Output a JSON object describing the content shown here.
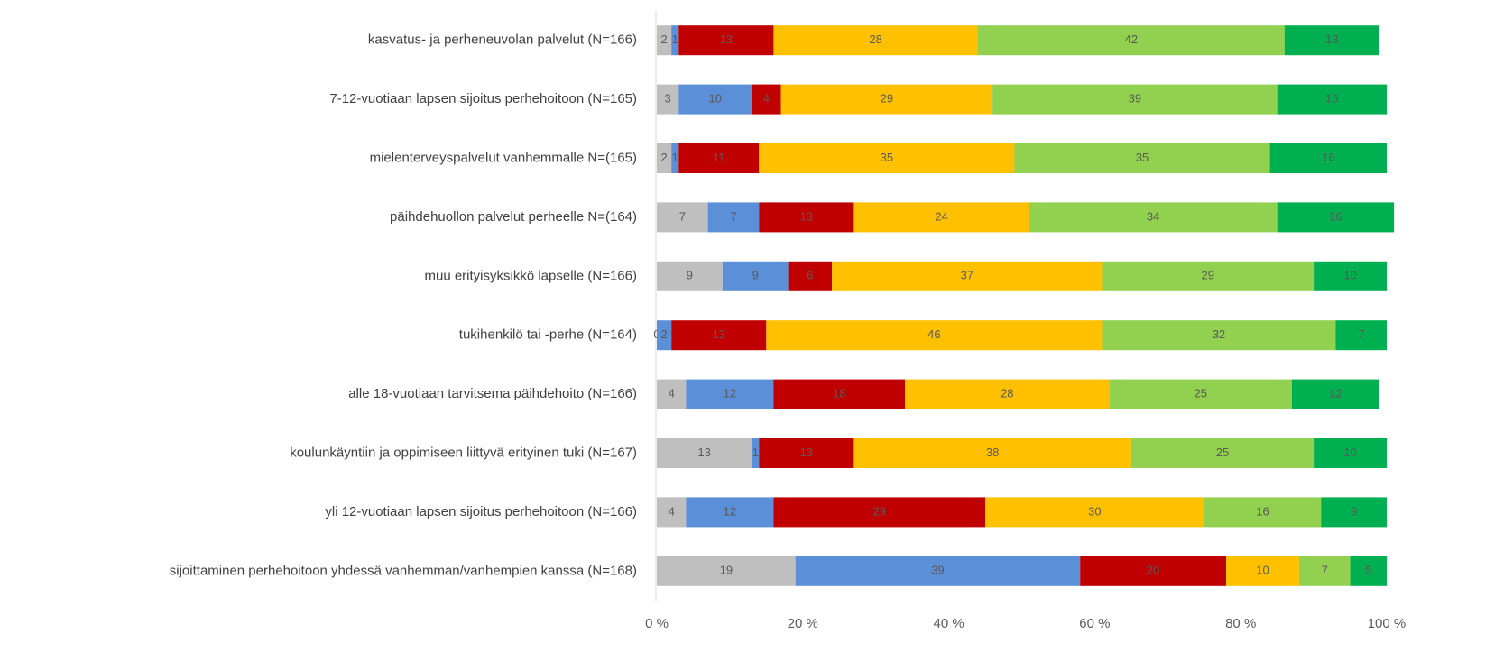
{
  "chart_data": {
    "type": "stacked_bar_horizontal_percent",
    "categories": [
      "kasvatus- ja perheneuvolan palvelut (N=166)",
      "7-12-vuotiaan lapsen sijoitus perhehoitoon (N=165)",
      "mielenterveyspalvelut vanhemmalle N=(165)",
      "päihdehuollon palvelut perheelle N=(164)",
      "muu erityisyksikkö lapselle (N=166)",
      "tukihenkilö tai -perhe (N=164)",
      "alle 18-vuotiaan tarvitsema päihdehoito (N=166)",
      "koulunkäyntiin ja oppimiseen liittyvä erityinen tuki (N=167)",
      "yli 12-vuotiaan lapsen sijoitus perhehoitoon (N=166)",
      "sijoittaminen perhehoitoon yhdessä vanhemman/vanhempien kanssa (N=168)"
    ],
    "series": [
      {
        "color": "#bfbfbf",
        "values": [
          2,
          3,
          2,
          7,
          9,
          0,
          4,
          13,
          4,
          19
        ]
      },
      {
        "color": "#5b8fd8",
        "values": [
          1,
          10,
          1,
          7,
          9,
          2,
          12,
          1,
          12,
          39
        ]
      },
      {
        "color": "#c00000",
        "values": [
          13,
          4,
          11,
          13,
          6,
          13,
          18,
          13,
          29,
          20
        ]
      },
      {
        "color": "#ffc000",
        "values": [
          28,
          29,
          35,
          24,
          37,
          46,
          28,
          38,
          30,
          10
        ]
      },
      {
        "color": "#92d050",
        "values": [
          42,
          39,
          35,
          34,
          29,
          32,
          25,
          25,
          16,
          7
        ]
      },
      {
        "color": "#00b050",
        "values": [
          13,
          15,
          16,
          16,
          10,
          7,
          12,
          10,
          9,
          5
        ]
      }
    ],
    "xlim": [
      0,
      100
    ],
    "xticks": [
      {
        "value": 0,
        "label": "0 %"
      },
      {
        "value": 20,
        "label": "20 %"
      },
      {
        "value": 40,
        "label": "40 %"
      },
      {
        "value": 60,
        "label": "60 %"
      },
      {
        "value": 80,
        "label": "80 %"
      },
      {
        "value": 100,
        "label": "100 %"
      }
    ],
    "grid": false
  }
}
